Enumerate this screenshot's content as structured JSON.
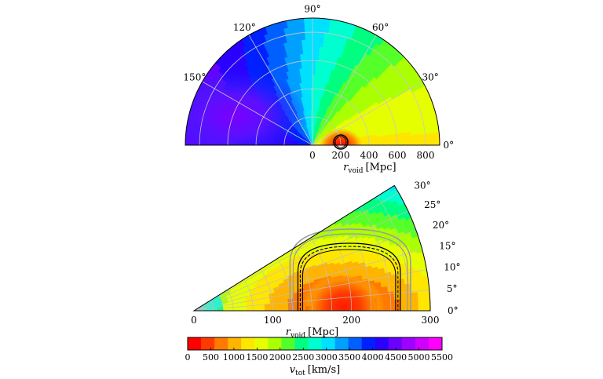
{
  "chart_data": [
    {
      "type": "heatmap",
      "projection": "polar-half",
      "theta_range_deg": [
        0,
        180
      ],
      "r_range": [
        0,
        900
      ],
      "xlabel": "r_void [Mpc]",
      "xlabel_parts": {
        "main": "r",
        "sub": "void",
        "unit": "[Mpc]"
      },
      "r_ticks": [
        0,
        200,
        400,
        600,
        800
      ],
      "theta_ticks_deg": [
        0,
        30,
        60,
        90,
        120,
        150
      ],
      "theta_tick_labels": [
        "0°",
        "30°",
        "60°",
        "90°",
        "120°",
        "150°"
      ],
      "grid": true,
      "features": {
        "minimum_region": {
          "r": 200,
          "theta_deg": 0,
          "v_tot": 0,
          "label": "void center (red, contoured)"
        },
        "maximum_region": {
          "r": 600,
          "theta_deg": 160,
          "v_tot": 4700
        }
      }
    },
    {
      "type": "heatmap",
      "projection": "polar-wedge",
      "theta_range_deg": [
        0,
        32
      ],
      "r_range": [
        0,
        300
      ],
      "xlabel": "r_void [Mpc]",
      "xlabel_parts": {
        "main": "r",
        "sub": "void",
        "unit": "[Mpc]"
      },
      "r_ticks": [
        0,
        100,
        200,
        300
      ],
      "theta_ticks_deg": [
        0,
        5,
        10,
        15,
        20,
        25,
        30
      ],
      "theta_tick_labels": [
        "0°",
        "5°",
        "10°",
        "15°",
        "20°",
        "25°",
        "30°"
      ],
      "grid": true,
      "features": {
        "minimum_region": {
          "r": 190,
          "theta_deg": 0,
          "v_tot": 0
        },
        "contours_black_r_deg0": [
          132,
          262
        ],
        "contours_grey_r_deg0": [
          122,
          275
        ]
      }
    }
  ],
  "colorbar": {
    "label": "v_tot [km/s]",
    "label_parts": {
      "main": "v",
      "sub": "tot",
      "unit": "[km/s]"
    },
    "ticks": [
      0,
      500,
      1000,
      1500,
      2000,
      2500,
      3000,
      3500,
      4000,
      4500,
      5000,
      5500
    ],
    "tick_labels": [
      "0",
      "500",
      "1000",
      "1500",
      "2000",
      "2500",
      "3000",
      "3500",
      "4000",
      "4500",
      "5000",
      "5500"
    ],
    "range": [
      0,
      5500
    ],
    "colors": [
      "#ff0000",
      "#ff3a00",
      "#ff7a00",
      "#ffb400",
      "#ffe600",
      "#e6ff00",
      "#aaff00",
      "#55ff2a",
      "#00ff80",
      "#00ffd0",
      "#00e0ff",
      "#00a0ff",
      "#0060ff",
      "#0020ff",
      "#2a00ff",
      "#6a00ff",
      "#a000ff",
      "#d000ff",
      "#ff00ff"
    ]
  }
}
